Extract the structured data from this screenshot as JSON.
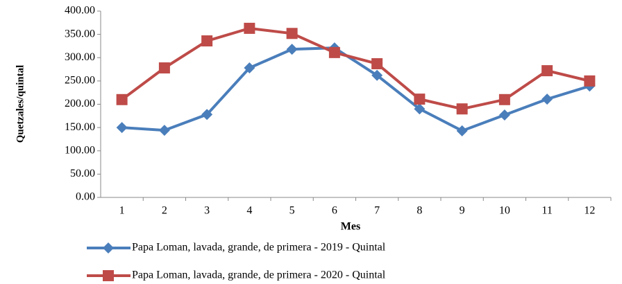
{
  "chart_data": {
    "type": "line",
    "x_label": "Mes",
    "y_label": "Quetzales/quintal",
    "categories": [
      "1",
      "2",
      "3",
      "4",
      "5",
      "6",
      "7",
      "8",
      "9",
      "10",
      "11",
      "12"
    ],
    "series": [
      {
        "name": "Papa Loman, lavada, grande, de primera - 2019 - Quintal",
        "color": "#4a7ebb",
        "marker": "diamond",
        "values": [
          150,
          144,
          178,
          278,
          318,
          321,
          262,
          190,
          143,
          177,
          211,
          239
        ]
      },
      {
        "name": "Papa Loman, lavada, grande, de primera - 2020 - Quintal",
        "color": "#be4b48",
        "marker": "square",
        "values": [
          210,
          278,
          336,
          363,
          352,
          311,
          287,
          211,
          190,
          210,
          272,
          250
        ]
      }
    ],
    "ylim": [
      0,
      400
    ],
    "yticks": [
      {
        "value": 0,
        "label": "0.00"
      },
      {
        "value": 50,
        "label": "50.00"
      },
      {
        "value": 100,
        "label": "100.00"
      },
      {
        "value": 150,
        "label": "150.00"
      },
      {
        "value": 200,
        "label": "200.00"
      },
      {
        "value": 250,
        "label": "250.00"
      },
      {
        "value": 300,
        "label": "300.00"
      },
      {
        "value": 350,
        "label": "350.00"
      },
      {
        "value": 400,
        "label": "400.00"
      }
    ],
    "legend": "bottom"
  }
}
